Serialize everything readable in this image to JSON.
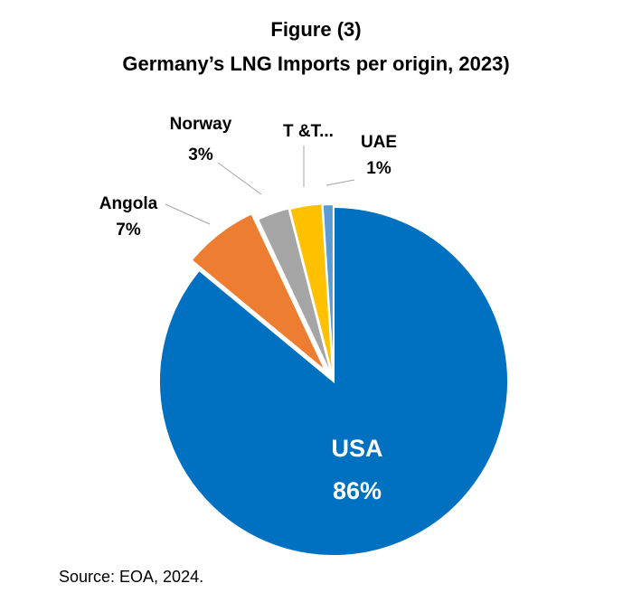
{
  "figure": {
    "number": "Figure (3)",
    "title": "Germany’s LNG Imports per origin, 2023)"
  },
  "chart_data": {
    "type": "pie",
    "title": "Germany’s LNG Imports per origin, 2023)",
    "slices": [
      {
        "label": "USA",
        "value": 86,
        "value_label": "86%",
        "color": "#0070C0"
      },
      {
        "label": "Angola",
        "value": 7,
        "value_label": "7%",
        "color": "#ED7D31"
      },
      {
        "label": "Norway",
        "value": 3,
        "value_label": "3%",
        "color": "#A5A5A5"
      },
      {
        "label": "T &T...",
        "value": 3,
        "value_label": "",
        "color": "#FFC000"
      },
      {
        "label": "UAE",
        "value": 1,
        "value_label": "1%",
        "color": "#5B9BD5"
      }
    ],
    "legend": "none"
  },
  "source": "Source: EOA, 2024."
}
